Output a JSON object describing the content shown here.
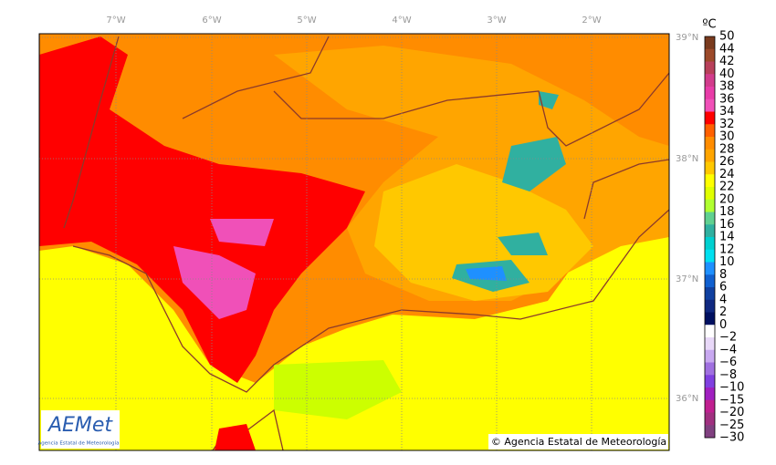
{
  "map": {
    "lon_labels": [
      "7°W",
      "6°W",
      "5°W",
      "4°W",
      "3°W",
      "2°W"
    ],
    "lat_labels": [
      "39°N",
      "38°N",
      "37°N",
      "36°N"
    ]
  },
  "colorbar": {
    "unit": "ºC",
    "labels": [
      "50",
      "44",
      "42",
      "40",
      "38",
      "36",
      "34",
      "32",
      "30",
      "28",
      "26",
      "24",
      "22",
      "20",
      "18",
      "16",
      "14",
      "12",
      "10",
      "8",
      "6",
      "4",
      "2",
      "0",
      "−2",
      "−4",
      "−6",
      "−8",
      "−10",
      "−15",
      "−20",
      "−25",
      "−30"
    ],
    "colors": [
      "#7a3b1e",
      "#9c4a2a",
      "#b8405a",
      "#d23c8c",
      "#e83ca8",
      "#f050b8",
      "#ff0000",
      "#ff6000",
      "#ff8c00",
      "#ffa500",
      "#ffc800",
      "#ffff00",
      "#e0ff00",
      "#b0ff30",
      "#60d090",
      "#30b0a0",
      "#00d0d0",
      "#00e0f0",
      "#1e90ff",
      "#1060d0",
      "#1040a0",
      "#102880",
      "#001060",
      "#ffffff",
      "#e8d8f8",
      "#c8a8f0",
      "#a070e0",
      "#8040e0",
      "#a020c0",
      "#c02090",
      "#a03080",
      "#804080"
    ]
  },
  "logo": {
    "name": "AEMet",
    "subtitle": "Agencia Estatal de Meteorología"
  },
  "credit": "© Agencia Estatal de Meteorología"
}
